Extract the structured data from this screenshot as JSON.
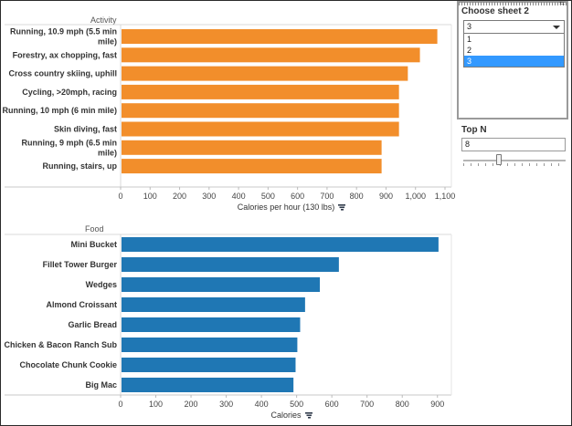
{
  "colors": {
    "activity_bar": "#f28e2b",
    "food_bar": "#1f77b4",
    "selected_option": "#3399ff"
  },
  "activity_panel": {
    "title": "Activity"
  },
  "food_panel": {
    "title": "Food"
  },
  "sheet_selector": {
    "title": "Choose sheet 2",
    "selected": "3",
    "options": [
      "1",
      "2",
      "3"
    ],
    "selected_index": 2
  },
  "top_n": {
    "title": "Top N",
    "value": "8",
    "slider_fraction": 0.35
  },
  "icons": {
    "sort": "sort-icon",
    "dropdown": "chevron-down-icon",
    "drag": "drag-handle-icon"
  },
  "chart_data": [
    {
      "type": "bar",
      "orientation": "horizontal",
      "title": "",
      "ylabel": "Activity",
      "xlabel": "Calories per hour (130 lbs)",
      "xlim": [
        0,
        1100
      ],
      "xticks": [
        0,
        100,
        200,
        300,
        400,
        500,
        600,
        700,
        800,
        900,
        1000,
        1100
      ],
      "xtick_labels": [
        "0",
        "100",
        "200",
        "300",
        "400",
        "500",
        "600",
        "700",
        "800",
        "900",
        "1,000",
        "1,100"
      ],
      "categories": [
        "Running, 10.9 mph (5.5 min mile)",
        "Forestry, ax chopping, fast",
        "Cross country skiing, uphill",
        "Cycling, >20mph, racing",
        "Running, 10 mph (6 min mile)",
        "Skin diving, fast",
        "Running, 9 mph (6.5 min mile)",
        "Running, stairs, up"
      ],
      "label_lines": [
        [
          "Running, 10.9 mph (5.5 min",
          "mile)"
        ],
        [
          "Forestry, ax chopping, fast"
        ],
        [
          "Cross country skiing, uphill"
        ],
        [
          "Cycling, >20mph, racing"
        ],
        [
          "Running, 10 mph (6 min mile)"
        ],
        [
          "Skin diving, fast"
        ],
        [
          "Running, 9 mph (6.5 min",
          "mile)"
        ],
        [
          "Running, stairs, up"
        ]
      ],
      "values": [
        1074,
        1015,
        974,
        944,
        944,
        944,
        885,
        885
      ],
      "grid": false
    },
    {
      "type": "bar",
      "orientation": "horizontal",
      "title": "",
      "ylabel": "Food",
      "xlabel": "Calories",
      "xlim": [
        0,
        950
      ],
      "xticks": [
        0,
        100,
        200,
        300,
        400,
        500,
        600,
        700,
        800,
        900
      ],
      "xtick_labels": [
        "0",
        "100",
        "200",
        "300",
        "400",
        "500",
        "600",
        "700",
        "800",
        "900"
      ],
      "categories": [
        "Mini Bucket",
        "Fillet Tower Burger",
        "Wedges",
        "Almond Croissant",
        "Garlic Bread",
        "Chicken & Bacon Ranch Sub",
        "Chocolate Chunk Cookie",
        "Big Mac"
      ],
      "label_lines": [
        [
          "Mini Bucket"
        ],
        [
          "Fillet Tower Burger"
        ],
        [
          "Wedges"
        ],
        [
          "Almond Croissant"
        ],
        [
          "Garlic Bread"
        ],
        [
          "Chicken & Bacon Ranch Sub"
        ],
        [
          "Chocolate Chunk Cookie"
        ],
        [
          "Big Mac"
        ]
      ],
      "values": [
        903,
        620,
        566,
        524,
        510,
        502,
        497,
        491
      ],
      "grid": false
    }
  ]
}
